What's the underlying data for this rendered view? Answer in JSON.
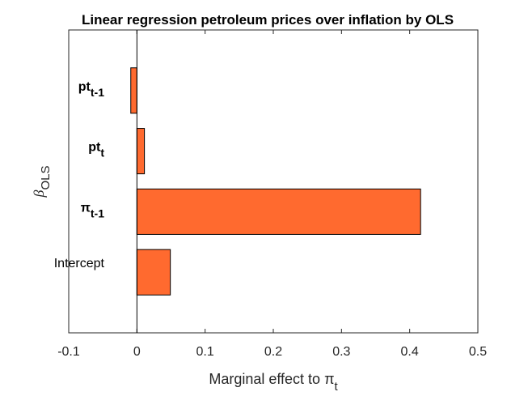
{
  "chart_data": {
    "type": "bar",
    "orientation": "horizontal",
    "title": "Linear regression petroleum prices over inflation  by OLS",
    "xlabel": {
      "text": "Marginal effect to π",
      "sub": "t"
    },
    "ylabel": {
      "text": "β",
      "sub": "OLS"
    },
    "xlim": [
      -0.1,
      0.5
    ],
    "xticks": [
      -0.1,
      0,
      0.1,
      0.2,
      0.3,
      0.4,
      0.5
    ],
    "xtick_labels": [
      "-0.1",
      "0",
      "0.1",
      "0.2",
      "0.3",
      "0.4",
      "0.5"
    ],
    "categories": [
      {
        "base": "Intercept",
        "sub": "",
        "bold": false
      },
      {
        "base": "π",
        "sub": "t-1",
        "bold": true
      },
      {
        "base": "pt",
        "sub": "t",
        "bold": true
      },
      {
        "base": "pt",
        "sub": "t-1",
        "bold": true
      }
    ],
    "values": [
      0.049,
      0.416,
      0.011,
      -0.009
    ],
    "bar_color": "#FF6A2F",
    "grid": false,
    "zero_line": true
  }
}
